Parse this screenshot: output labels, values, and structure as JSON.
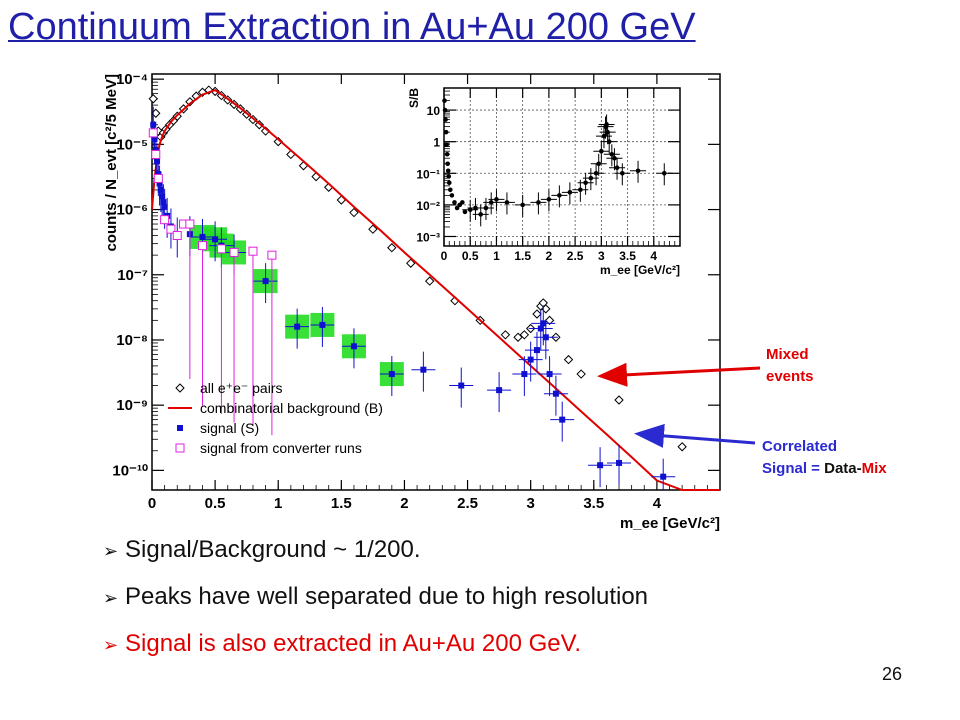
{
  "slide": {
    "title": "Continuum Extraction in Au+Au 200 GeV",
    "page_number": "26",
    "bullets": [
      {
        "text": "Signal/Background ~ 1/200.",
        "color": "#111111"
      },
      {
        "text": "Peaks have well separated due to high resolution",
        "color": "#111111"
      },
      {
        "text": "Signal is also extracted in Au+Au 200 GeV.",
        "color": "#e00000"
      }
    ],
    "annotations": {
      "mixed_line1": "Mixed",
      "mixed_line2": "events",
      "corr_line1": "Correlated",
      "corr_line2_a": "Signal = ",
      "corr_line2_b": "Data",
      "corr_line2_c": "-",
      "corr_line2_d": "Mix"
    }
  },
  "chart_data": [
    {
      "type": "scatter",
      "xlabel": "m_ee [GeV/c²]",
      "ylabel": "counts / N_evt [c²/5 MeV]",
      "xlim": [
        0,
        4.5
      ],
      "ylim": [
        5e-11,
        0.00012
      ],
      "log_y": true,
      "x_ticks": [
        "0",
        "0.5",
        "1",
        "1.5",
        "2",
        "2.5",
        "3",
        "3.5",
        "4"
      ],
      "y_ticks": [
        "10⁻¹⁰",
        "10⁻⁹",
        "10⁻⁸",
        "10⁻⁷",
        "10⁻⁶",
        "10⁻⁵",
        "10⁻⁴"
      ],
      "legend": [
        "all e⁺e⁻ pairs",
        "combinatorial background (B)",
        "signal (S)",
        "signal from converter runs"
      ],
      "legend_position": "bottom-left",
      "series": [
        {
          "name": "all e⁺e⁻ pairs",
          "color": "#000000",
          "marker": "open-diamond",
          "x": [
            0.01,
            0.03,
            0.05,
            0.07,
            0.09,
            0.11,
            0.14,
            0.17,
            0.2,
            0.25,
            0.3,
            0.35,
            0.4,
            0.45,
            0.5,
            0.55,
            0.6,
            0.65,
            0.7,
            0.75,
            0.8,
            0.85,
            0.9,
            1.0,
            1.1,
            1.2,
            1.3,
            1.4,
            1.5,
            1.6,
            1.75,
            1.9,
            2.05,
            2.2,
            2.4,
            2.6,
            2.8,
            2.9,
            2.95,
            3.0,
            3.05,
            3.08,
            3.1,
            3.12,
            3.15,
            3.2,
            3.3,
            3.4,
            3.7,
            4.2
          ],
          "y": [
            5e-05,
            3e-05,
            1.6e-05,
            1.3e-05,
            1.5e-05,
            1.7e-05,
            2e-05,
            2.3e-05,
            2.7e-05,
            3.5e-05,
            4.5e-05,
            5.5e-05,
            6.3e-05,
            6.8e-05,
            6.5e-05,
            5.6e-05,
            4.8e-05,
            4.1e-05,
            3.5e-05,
            2.9e-05,
            2.4e-05,
            2e-05,
            1.6e-05,
            1.1e-05,
            7e-06,
            4.7e-06,
            3.2e-06,
            2.2e-06,
            1.4e-06,
            9e-07,
            5e-07,
            2.6e-07,
            1.5e-07,
            8e-08,
            4e-08,
            2e-08,
            1.2e-08,
            1.1e-08,
            1.2e-08,
            1.5e-08,
            2.5e-08,
            3.3e-08,
            3.7e-08,
            3e-08,
            2e-08,
            1.1e-08,
            5e-09,
            3e-09,
            1.2e-09,
            2.3e-10
          ]
        },
        {
          "name": "combinatorial background (B)",
          "color": "#e00000",
          "marker": "line",
          "x": [
            0.0,
            0.02,
            0.04,
            0.06,
            0.08,
            0.1,
            0.15,
            0.2,
            0.3,
            0.4,
            0.5,
            0.6,
            0.7,
            0.8,
            0.9,
            1.0,
            1.2,
            1.4,
            1.6,
            1.8,
            2.0,
            2.2,
            2.4,
            2.6,
            2.8,
            3.0,
            3.2,
            3.4,
            3.6,
            3.8,
            4.0,
            4.2,
            4.5
          ],
          "y": [
            1e-06,
            3e-06,
            6e-06,
            1e-05,
            1.3e-05,
            1.6e-05,
            2.2e-05,
            2.8e-05,
            4.2e-05,
            5.8e-05,
            6.8e-05,
            5e-05,
            3.6e-05,
            2.5e-05,
            1.75e-05,
            1.2e-05,
            5.5e-06,
            2.5e-06,
            1.1e-06,
            5e-07,
            2.2e-07,
            1e-07,
            4.5e-08,
            2e-08,
            9e-09,
            4e-09,
            1.8e-09,
            8e-10,
            3.6e-10,
            1.6e-10,
            7e-11,
            5e-11,
            5e-11
          ]
        },
        {
          "name": "signal (S)",
          "color": "#1010d0",
          "marker": "filled-square",
          "x": [
            0.01,
            0.02,
            0.03,
            0.04,
            0.05,
            0.06,
            0.07,
            0.08,
            0.09,
            0.1,
            0.12,
            0.15,
            0.2,
            0.3,
            0.4,
            0.5,
            0.55,
            0.65,
            0.9,
            1.15,
            1.35,
            1.6,
            1.9,
            2.15,
            2.45,
            2.75,
            2.95,
            3.0,
            3.05,
            3.08,
            3.1,
            3.12,
            3.15,
            3.2,
            3.25,
            3.55,
            3.7,
            4.05
          ],
          "y": [
            2e-05,
            1.2e-05,
            8e-06,
            5.5e-06,
            3.5e-06,
            2.5e-06,
            2e-06,
            1.6e-06,
            1.3e-06,
            1.1e-06,
            8e-07,
            5.5e-07,
            4e-07,
            4.2e-07,
            3.8e-07,
            3.5e-07,
            2.8e-07,
            2.2e-07,
            8e-08,
            1.6e-08,
            1.7e-08,
            8e-09,
            3e-09,
            3.5e-09,
            2e-09,
            1.7e-09,
            3e-09,
            5e-09,
            7e-09,
            1.5e-08,
            1.8e-08,
            1.1e-08,
            3e-09,
            1.5e-09,
            6e-10,
            1.2e-10,
            1.3e-10,
            8e-11
          ]
        },
        {
          "name": "signal from converter runs",
          "color": "#e020e0",
          "marker": "open-square",
          "x": [
            0.01,
            0.03,
            0.05,
            0.1,
            0.15,
            0.2,
            0.25,
            0.3,
            0.4,
            0.55,
            0.65,
            0.8,
            0.95
          ],
          "y": [
            1.5e-05,
            7e-06,
            3e-06,
            7e-07,
            5e-07,
            4e-07,
            6e-07,
            6e-07,
            2.8e-07,
            2.5e-07,
            2.2e-07,
            2.3e-07,
            2e-07
          ]
        }
      ]
    },
    {
      "type": "scatter",
      "title": "",
      "xlabel": "m_ee [GeV/c²]",
      "ylabel": "S/B",
      "xlim": [
        0,
        4.5
      ],
      "ylim": [
        0.0005,
        50
      ],
      "log_y": true,
      "grid": true,
      "x_ticks": [
        "0",
        "0.5",
        "1",
        "1.5",
        "2",
        "2.5",
        "3",
        "3.5",
        "4"
      ],
      "y_ticks": [
        "10⁻³",
        "10⁻²",
        "10⁻¹",
        "1",
        "10"
      ],
      "series": [
        {
          "name": "",
          "color": "#000000",
          "marker": "filled-circle",
          "x": [
            0.01,
            0.02,
            0.03,
            0.04,
            0.05,
            0.06,
            0.07,
            0.08,
            0.09,
            0.1,
            0.12,
            0.15,
            0.2,
            0.25,
            0.3,
            0.35,
            0.4,
            0.5,
            0.6,
            0.7,
            0.8,
            0.9,
            1.0,
            1.2,
            1.5,
            1.8,
            2.0,
            2.2,
            2.4,
            2.6,
            2.7,
            2.8,
            2.9,
            2.95,
            3.0,
            3.05,
            3.08,
            3.1,
            3.12,
            3.15,
            3.2,
            3.25,
            3.3,
            3.4,
            3.7,
            4.2
          ],
          "y": [
            20,
            10,
            5,
            2,
            0.8,
            0.4,
            0.2,
            0.12,
            0.08,
            0.05,
            0.03,
            0.02,
            0.012,
            0.008,
            0.01,
            0.012,
            0.006,
            0.007,
            0.008,
            0.005,
            0.008,
            0.012,
            0.015,
            0.012,
            0.01,
            0.012,
            0.015,
            0.02,
            0.025,
            0.03,
            0.05,
            0.07,
            0.1,
            0.2,
            0.5,
            1.5,
            3,
            3.5,
            2,
            1,
            0.4,
            0.3,
            0.15,
            0.1,
            0.12,
            0.1
          ]
        }
      ]
    }
  ]
}
